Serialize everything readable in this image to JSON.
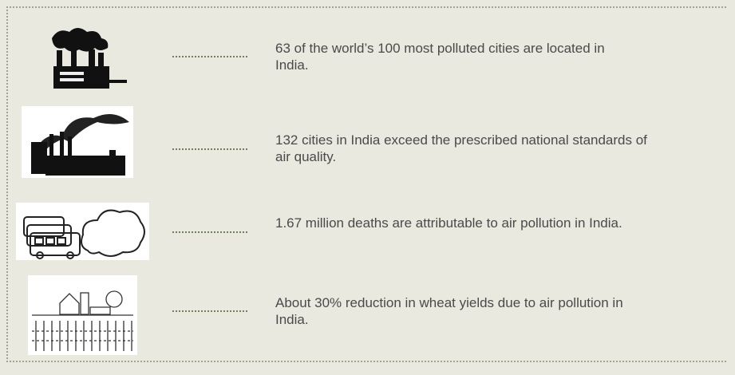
{
  "items": [
    {
      "text": "63 of the world’s 100 most polluted cities are located in India."
    },
    {
      "text": "132 cities in India exceed the prescribed national standards of air quality."
    },
    {
      "text": "1.67 million deaths are attributable to air pollution in India."
    },
    {
      "text": "About 30% reduction in wheat yields due to air pollution in India."
    }
  ]
}
